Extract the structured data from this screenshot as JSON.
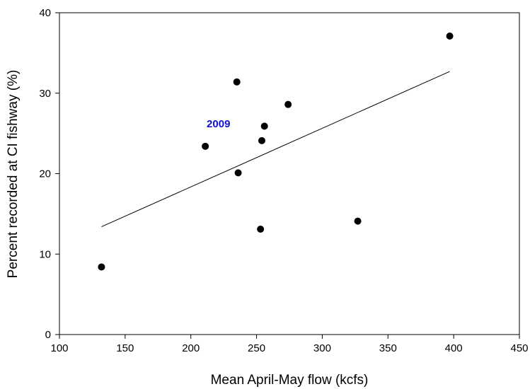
{
  "chart_data": {
    "type": "scatter",
    "xlabel": "Mean April-May flow (kcfs)",
    "ylabel": "Percent recorded at CI fishway (%)",
    "xlim": [
      100,
      450
    ],
    "ylim": [
      0,
      40
    ],
    "x_ticks": [
      100,
      150,
      200,
      250,
      300,
      350,
      400,
      450
    ],
    "y_ticks": [
      0,
      10,
      20,
      30,
      40
    ],
    "grid": false,
    "legend": "none",
    "points": [
      {
        "x": 132,
        "y": 8.4
      },
      {
        "x": 211,
        "y": 23.4
      },
      {
        "x": 235,
        "y": 31.4
      },
      {
        "x": 236,
        "y": 20.1
      },
      {
        "x": 253,
        "y": 13.1
      },
      {
        "x": 254,
        "y": 24.1
      },
      {
        "x": 256,
        "y": 25.9
      },
      {
        "x": 274,
        "y": 28.6
      },
      {
        "x": 327,
        "y": 14.1
      },
      {
        "x": 397,
        "y": 37.1
      }
    ],
    "trendline": {
      "x": [
        132,
        397
      ],
      "y": [
        13.4,
        32.7
      ]
    },
    "annotations": [
      {
        "text": "2009",
        "x": 230,
        "y": 26.2,
        "color": "#1010d0"
      }
    ],
    "colors": {
      "points": "#000000",
      "trendline": "#000000",
      "annotation": "#1010d0"
    }
  }
}
